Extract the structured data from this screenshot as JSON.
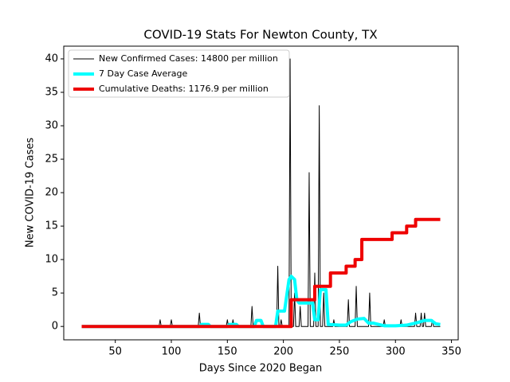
{
  "chart_data": {
    "type": "line",
    "title": "COVID-19 Stats For Newton County, TX",
    "x_label": "Days Since 2020 Began",
    "y_label": "New COVID-19 Cases",
    "xlim": [
      4,
      356
    ],
    "ylim": [
      -2,
      41.9
    ],
    "xticks": [
      50,
      100,
      150,
      200,
      250,
      300,
      350
    ],
    "yticks": [
      0,
      5,
      10,
      15,
      20,
      25,
      30,
      35,
      40
    ],
    "grid": false,
    "legend": "upper left",
    "series": [
      {
        "name": "New Confirmed Cases: 14800 per million",
        "color": "#000000",
        "width": 1,
        "x": [
          20,
          89,
          90,
          91,
          99,
          100,
          101,
          124,
          125,
          126,
          149,
          150,
          151,
          154,
          155,
          156,
          171,
          172,
          173,
          194,
          195,
          196,
          197,
          198,
          199,
          205,
          206,
          207,
          209,
          210,
          211,
          214,
          215,
          216,
          222,
          223,
          224,
          227,
          228,
          229,
          231,
          232,
          233,
          235,
          236,
          237,
          244,
          245,
          246,
          257,
          258,
          259,
          264,
          265,
          266,
          276,
          277,
          278,
          289,
          290,
          291,
          304,
          305,
          306,
          317,
          318,
          319,
          322,
          323,
          324,
          325,
          326,
          327,
          332,
          333,
          334,
          340
        ],
        "values": [
          0,
          0,
          1,
          0,
          0,
          1,
          0,
          0,
          2,
          0,
          0,
          1,
          0,
          0,
          1,
          0,
          0,
          3,
          0,
          0,
          9,
          0,
          0,
          1,
          0,
          0,
          40,
          0,
          0,
          5,
          0,
          0,
          3,
          0,
          0,
          23,
          0,
          0,
          8,
          0,
          0,
          33,
          0,
          0,
          5,
          0,
          0,
          1,
          0,
          0,
          4,
          0,
          0,
          6,
          0,
          0,
          5,
          0,
          0,
          1,
          0,
          0,
          1,
          0,
          0,
          2,
          0,
          0,
          2,
          0,
          0,
          2,
          0,
          0,
          1,
          0,
          0
        ]
      },
      {
        "name": "7 Day Case Average",
        "color": "#00ffff",
        "width": 4,
        "x": [
          20,
          125,
          127,
          133,
          135,
          150,
          152,
          158,
          160,
          174,
          176,
          180,
          182,
          193,
          195,
          199,
          201,
          205,
          207,
          210,
          212,
          214,
          218,
          222,
          226,
          228,
          231,
          233,
          235,
          238,
          240,
          250,
          256,
          260,
          266,
          272,
          276,
          280,
          290,
          300,
          310,
          320,
          326,
          332,
          336,
          340
        ],
        "values": [
          0,
          0,
          0.3,
          0.3,
          0,
          0,
          0.3,
          0.3,
          0,
          0,
          0.9,
          0.9,
          0,
          0,
          2.3,
          2.3,
          2.3,
          7,
          7.5,
          7,
          4,
          3.5,
          3.5,
          3.5,
          3.5,
          1,
          1,
          5.5,
          5.5,
          5.5,
          0.3,
          0.2,
          0.2,
          0.7,
          1.1,
          1.2,
          0.5,
          0.5,
          0.1,
          0.1,
          0.2,
          0.6,
          0.9,
          0.9,
          0.4,
          0.3
        ]
      },
      {
        "name": "Cumulative Deaths: 1176.9 per million",
        "color": "#ee0000",
        "width": 4,
        "x": [
          20,
          207,
          207,
          228,
          228,
          242,
          242,
          256,
          256,
          264,
          264,
          270,
          270,
          297,
          297,
          310,
          310,
          318,
          318,
          340
        ],
        "values": [
          0,
          0,
          4,
          4,
          6,
          6,
          8,
          8,
          9,
          9,
          10,
          10,
          13,
          13,
          14,
          14,
          15,
          15,
          16,
          16
        ]
      }
    ]
  }
}
